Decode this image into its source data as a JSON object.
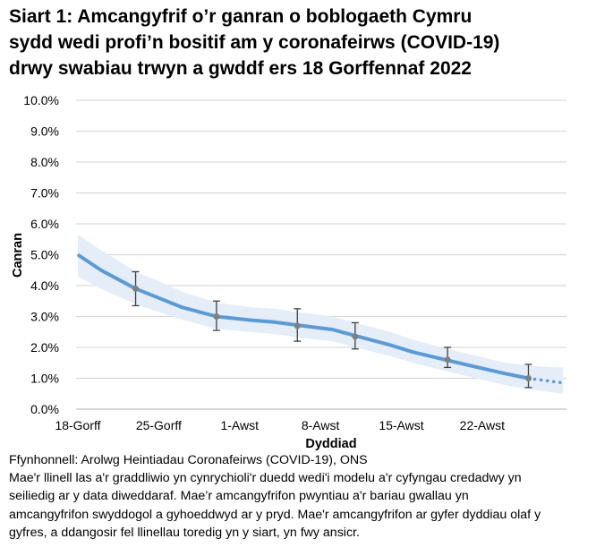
{
  "title_lines": [
    "Siart 1: Amcangyfrif o’r ganran o boblogaeth Cymru",
    "sydd wedi profi’n bositif am y coronafeirws (COVID-19)",
    "drwy swabiau trwyn a gwddf ers 18 Gorffennaf 2022"
  ],
  "notes": [
    "Ffynhonnell: Arolwg Heintiadau Coronafeirws (COVID-19), ONS",
    "Mae'r llinell las a'r graddliwio yn cynrychioli'r duedd wedi'i modelu a'r cyfyngau credadwy yn",
    "seiliedig ar y data diweddaraf. Mae’r amcangyfrifon pwyntiau a'r bariau gwallau yn",
    "amcangyfrifon swyddogol a gyhoeddwyd ar y pryd. Mae'r amcangyfrifon ar gyfer dyddiau olaf y",
    "gyfres, a ddangosir fel llinellau toredig yn y siart, yn fwy ansicr."
  ],
  "chart_data": {
    "type": "line",
    "xlabel": "Dyddiad",
    "ylabel": "Canran",
    "ylim": [
      0,
      10
    ],
    "yticks": [
      "0.0%",
      "1.0%",
      "2.0%",
      "3.0%",
      "4.0%",
      "5.0%",
      "6.0%",
      "7.0%",
      "8.0%",
      "9.0%",
      "10.0%"
    ],
    "xticks": [
      {
        "date": "2022-07-18",
        "label": "18-Gorff"
      },
      {
        "date": "2022-07-25",
        "label": "25-Gorff"
      },
      {
        "date": "2022-08-01",
        "label": "1-Awst"
      },
      {
        "date": "2022-08-08",
        "label": "8-Awst"
      },
      {
        "date": "2022-08-15",
        "label": "15-Awst"
      },
      {
        "date": "2022-08-22",
        "label": "22-Awst"
      }
    ],
    "grid": true,
    "colors": {
      "trend": "#5b9bd5",
      "band": "#e4edf8",
      "points": "#7f7f7f",
      "errorbars": "#404040",
      "grid": "#d9d9d9"
    },
    "trend": [
      {
        "x": "2022-07-18",
        "y": 5.0,
        "lo": 4.3,
        "hi": 5.65
      },
      {
        "x": "2022-07-20",
        "y": 4.5,
        "lo": 3.9,
        "hi": 5.15
      },
      {
        "x": "2022-07-23",
        "y": 3.9,
        "lo": 3.4,
        "hi": 4.45
      },
      {
        "x": "2022-07-25",
        "y": 3.6,
        "lo": 3.15,
        "hi": 4.15
      },
      {
        "x": "2022-07-27",
        "y": 3.3,
        "lo": 2.9,
        "hi": 3.8
      },
      {
        "x": "2022-07-30",
        "y": 3.0,
        "lo": 2.6,
        "hi": 3.45
      },
      {
        "x": "2022-08-02",
        "y": 2.88,
        "lo": 2.5,
        "hi": 3.3
      },
      {
        "x": "2022-08-04",
        "y": 2.82,
        "lo": 2.43,
        "hi": 3.25
      },
      {
        "x": "2022-08-06",
        "y": 2.72,
        "lo": 2.33,
        "hi": 3.15
      },
      {
        "x": "2022-08-09",
        "y": 2.58,
        "lo": 2.2,
        "hi": 3.0
      },
      {
        "x": "2022-08-11",
        "y": 2.38,
        "lo": 2.0,
        "hi": 2.8
      },
      {
        "x": "2022-08-14",
        "y": 2.08,
        "lo": 1.72,
        "hi": 2.5
      },
      {
        "x": "2022-08-16",
        "y": 1.85,
        "lo": 1.5,
        "hi": 2.25
      },
      {
        "x": "2022-08-19",
        "y": 1.58,
        "lo": 1.22,
        "hi": 1.95
      },
      {
        "x": "2022-08-22",
        "y": 1.32,
        "lo": 0.95,
        "hi": 1.68
      },
      {
        "x": "2022-08-24",
        "y": 1.15,
        "lo": 0.78,
        "hi": 1.5
      },
      {
        "x": "2022-08-26",
        "y": 1.0,
        "lo": 0.65,
        "hi": 1.42
      }
    ],
    "trend_uncertain": [
      {
        "x": "2022-08-26",
        "y": 1.0,
        "lo": 0.65,
        "hi": 1.42
      },
      {
        "x": "2022-08-27",
        "y": 0.95,
        "lo": 0.6,
        "hi": 1.38
      },
      {
        "x": "2022-08-28",
        "y": 0.9,
        "lo": 0.55,
        "hi": 1.36
      },
      {
        "x": "2022-08-29",
        "y": 0.85,
        "lo": 0.5,
        "hi": 1.35
      }
    ],
    "points": [
      {
        "x": "2022-07-23",
        "y": 3.9,
        "lo": 3.35,
        "hi": 4.45
      },
      {
        "x": "2022-07-30",
        "y": 3.0,
        "lo": 2.55,
        "hi": 3.5
      },
      {
        "x": "2022-08-06",
        "y": 2.7,
        "lo": 2.2,
        "hi": 3.25
      },
      {
        "x": "2022-08-11",
        "y": 2.35,
        "lo": 1.95,
        "hi": 2.8
      },
      {
        "x": "2022-08-19",
        "y": 1.6,
        "lo": 1.35,
        "hi": 2.0
      },
      {
        "x": "2022-08-26",
        "y": 1.0,
        "lo": 0.7,
        "hi": 1.45
      }
    ]
  }
}
